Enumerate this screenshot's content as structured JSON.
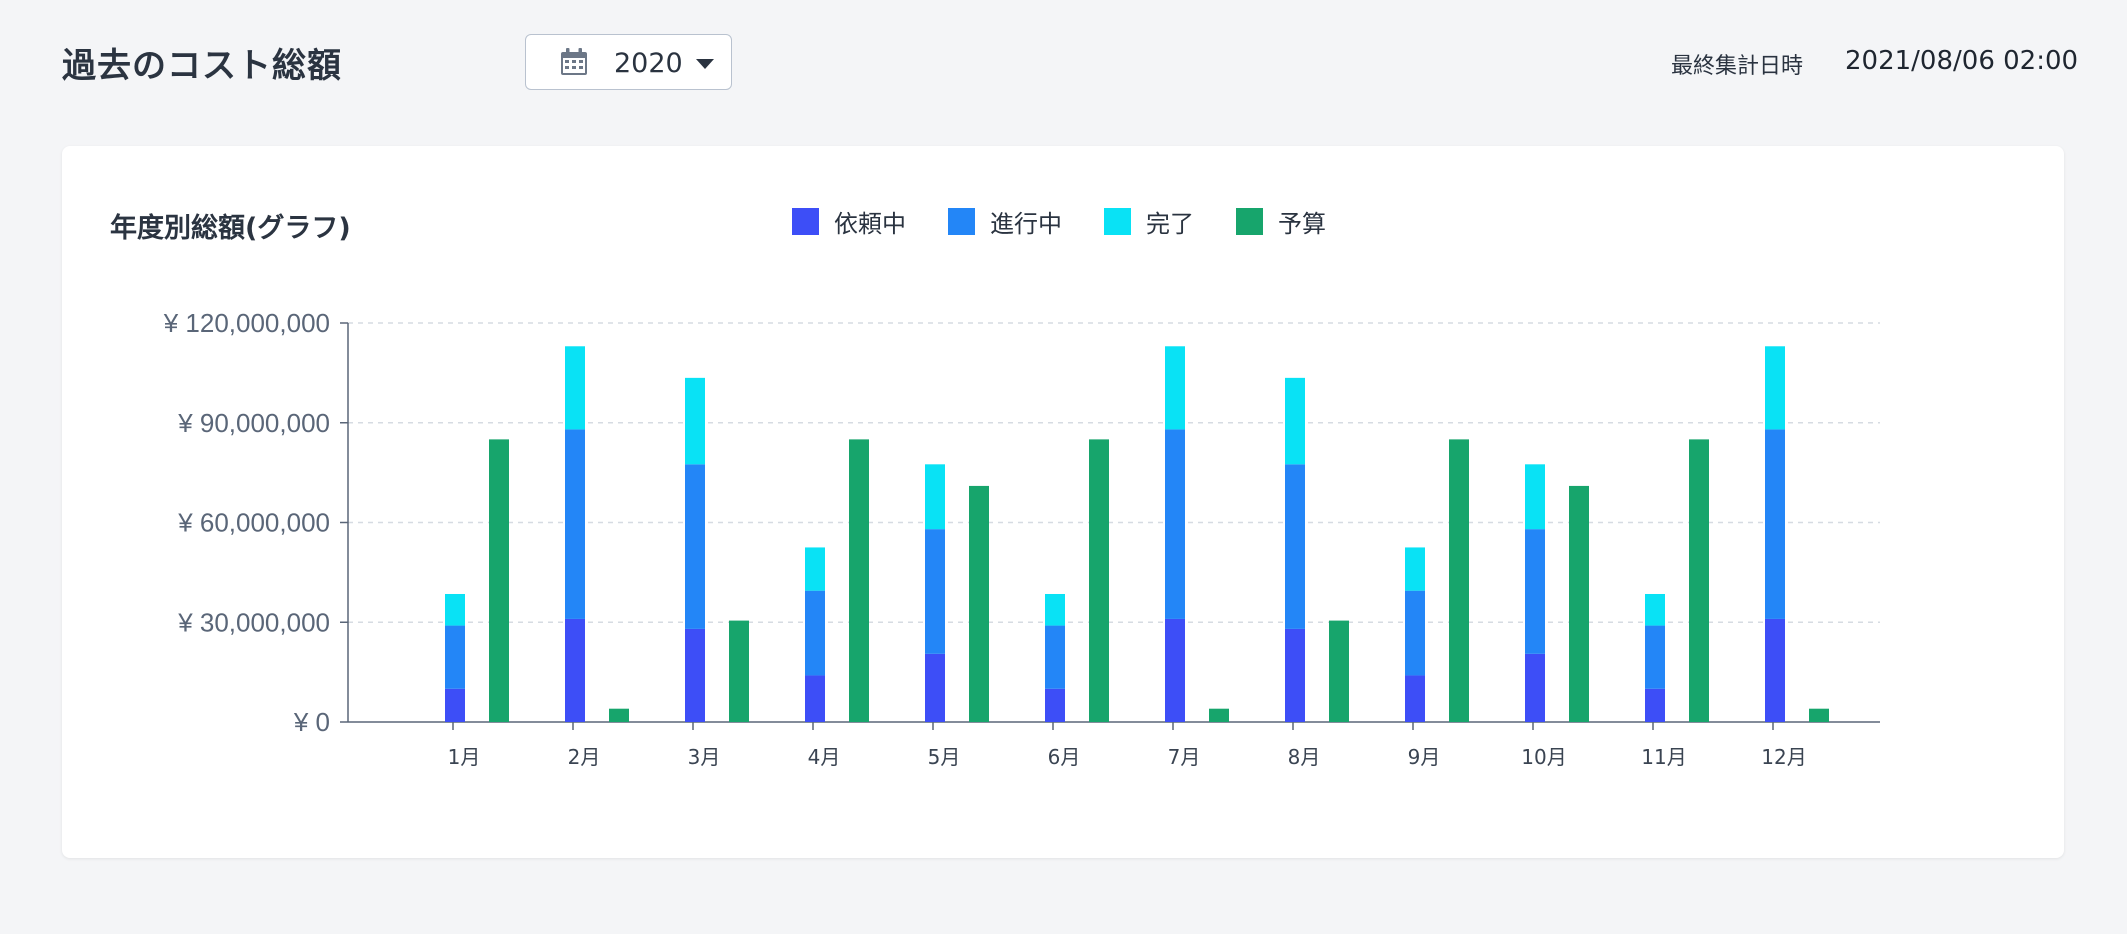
{
  "header": {
    "title": "過去のコスト総額",
    "year_selector": {
      "value": "2020",
      "icon": "calendar-icon"
    },
    "last_aggregated_label": "最終集計日時",
    "last_aggregated_value": "2021/08/06 02:00"
  },
  "card": {
    "title": "年度別総額(グラフ)"
  },
  "colors": {
    "requested": "#3d4ef7",
    "in_progress": "#2386f7",
    "completed": "#09e2f5",
    "budget": "#17a56c"
  },
  "chart_data": {
    "type": "bar",
    "stacked": true,
    "categories": [
      "1月",
      "2月",
      "3月",
      "4月",
      "5月",
      "6月",
      "7月",
      "8月",
      "9月",
      "10月",
      "11月",
      "12月"
    ],
    "series": [
      {
        "name": "依頼中",
        "stack": "actual",
        "color": "#3d4ef7",
        "values": [
          10000000,
          31000000,
          28000000,
          14000000,
          20500000,
          10000000,
          31000000,
          28000000,
          14000000,
          20500000,
          10000000,
          31000000
        ]
      },
      {
        "name": "進行中",
        "stack": "actual",
        "color": "#2386f7",
        "values": [
          19000000,
          57000000,
          49500000,
          25500000,
          37500000,
          19000000,
          57000000,
          49500000,
          25500000,
          37500000,
          19000000,
          57000000
        ]
      },
      {
        "name": "完了",
        "stack": "actual",
        "color": "#09e2f5",
        "values": [
          9500000,
          25000000,
          26000000,
          13000000,
          19500000,
          9500000,
          25000000,
          26000000,
          13000000,
          19500000,
          9500000,
          25000000
        ]
      },
      {
        "name": "予算",
        "stack": "budget",
        "color": "#17a56c",
        "values": [
          85000000,
          4000000,
          30500000,
          85000000,
          71000000,
          85000000,
          4000000,
          30500000,
          85000000,
          71000000,
          85000000,
          4000000
        ]
      }
    ],
    "yticks": [
      "¥ 0",
      "¥ 30,000,000",
      "¥ 60,000,000",
      "¥ 90,000,000",
      "¥ 120,000,000"
    ],
    "ylim": [
      0,
      120000000
    ],
    "grid": true,
    "legend": "top-center"
  }
}
